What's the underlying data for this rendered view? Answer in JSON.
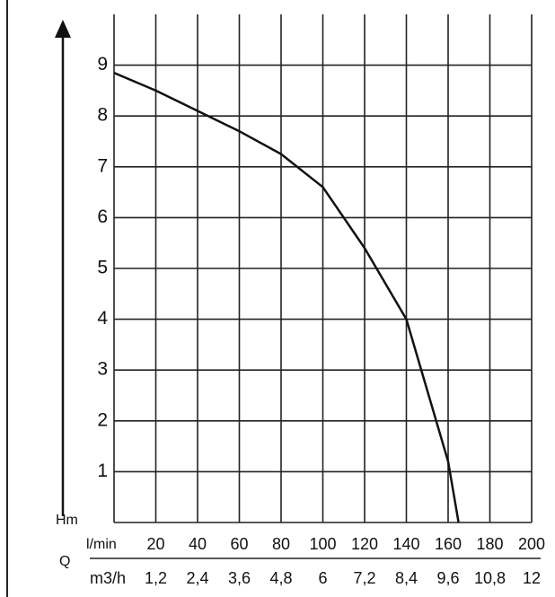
{
  "chart_data": {
    "type": "line",
    "y_label": "Hm",
    "x_label": "Q",
    "x_unit": "l/min",
    "x2_unit": "m3/h",
    "x": [
      0,
      20,
      40,
      60,
      80,
      100,
      120,
      140,
      150,
      160,
      165
    ],
    "series": [
      {
        "name": "H",
        "color": "#111111",
        "values": [
          8.85,
          8.5,
          8.1,
          7.7,
          7.25,
          6.6,
          5.4,
          4.0,
          2.6,
          1.2,
          0
        ]
      }
    ],
    "xlim": [
      0,
      200
    ],
    "xticks": [
      20,
      40,
      60,
      80,
      100,
      120,
      140,
      160,
      180,
      200
    ],
    "x2lim": [
      0,
      12
    ],
    "x2ticks": [
      {
        "value": 1.2,
        "label": "1,2"
      },
      {
        "value": 2.4,
        "label": "2,4"
      },
      {
        "value": 3.6,
        "label": "3,6"
      },
      {
        "value": 4.8,
        "label": "4,8"
      },
      6,
      {
        "value": 7.2,
        "label": "7,2"
      },
      {
        "value": 8.4,
        "label": "8,4"
      },
      {
        "value": 9.6,
        "label": "9,6"
      },
      {
        "value": 10.8,
        "label": "10,8"
      },
      12
    ],
    "ylim": [
      0,
      10
    ],
    "yticks": [
      1,
      2,
      3,
      4,
      5,
      6,
      7,
      8,
      9
    ],
    "grid": true
  }
}
